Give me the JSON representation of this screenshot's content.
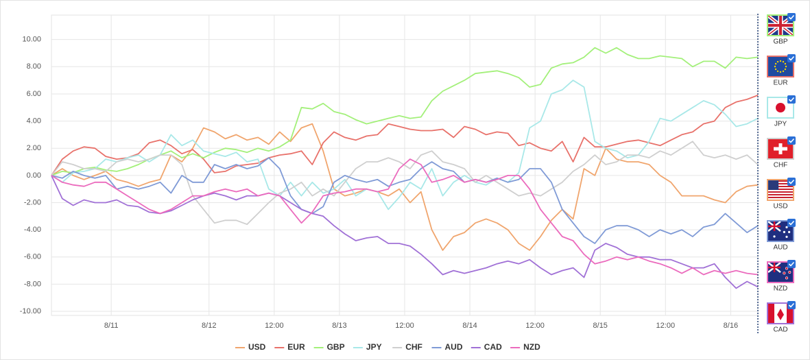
{
  "chart_data": {
    "type": "line",
    "x": [
      0,
      1,
      2,
      3,
      4,
      5,
      6,
      7,
      8,
      9,
      10,
      11,
      12,
      13,
      14,
      15,
      16,
      17,
      18,
      19,
      20,
      21,
      22,
      23,
      24,
      25,
      26,
      27,
      28,
      29,
      30,
      31,
      32,
      33,
      34,
      35,
      36,
      37,
      38,
      39,
      40,
      41,
      42,
      43,
      44,
      45,
      46,
      47,
      48,
      49,
      50,
      51,
      52,
      53,
      54,
      55,
      56,
      57,
      58,
      59,
      60,
      61,
      62,
      63,
      64,
      65
    ],
    "xlim": [
      0,
      65
    ],
    "xticks": [
      {
        "value": 5.5,
        "label": "8/11"
      },
      {
        "value": 14.5,
        "label": "8/12"
      },
      {
        "value": 20.5,
        "label": "12:00"
      },
      {
        "value": 26.5,
        "label": "8/13"
      },
      {
        "value": 32.5,
        "label": "12:00"
      },
      {
        "value": 38.5,
        "label": "8/14"
      },
      {
        "value": 44.5,
        "label": "12:00"
      },
      {
        "value": 50.5,
        "label": "8/15"
      },
      {
        "value": 56.5,
        "label": "12:00"
      },
      {
        "value": 62.5,
        "label": "8/16"
      }
    ],
    "ylim": [
      -10.3,
      11.8
    ],
    "yticks": [
      {
        "value": -10,
        "label": "-10.00"
      },
      {
        "value": -8,
        "label": "-8.00"
      },
      {
        "value": -6,
        "label": "-6.00"
      },
      {
        "value": -4,
        "label": "-4.00"
      },
      {
        "value": -2,
        "label": "-2.00"
      },
      {
        "value": 0,
        "label": "0.00"
      },
      {
        "value": 2,
        "label": "2.00"
      },
      {
        "value": 4,
        "label": "4.00"
      },
      {
        "value": 6,
        "label": "6.00"
      },
      {
        "value": 8,
        "label": "8.00"
      },
      {
        "value": 10,
        "label": "10.00"
      }
    ],
    "grid": true,
    "legend": "bottom",
    "series": [
      {
        "name": "USD",
        "color": "#f0a56d",
        "values": [
          0,
          0.5,
          0.0,
          -0.3,
          0.0,
          0.3,
          -0.3,
          -0.5,
          -0.8,
          -0.5,
          -0.3,
          1.5,
          1.0,
          2.0,
          3.5,
          3.2,
          2.7,
          3.0,
          2.6,
          2.8,
          2.3,
          3.2,
          2.5,
          3.5,
          3.8,
          1.8,
          -1.0,
          -1.5,
          -1.3,
          -1.0,
          -1.2,
          -1.5,
          -1.0,
          -2.0,
          -1.2,
          -4.0,
          -5.5,
          -4.5,
          -4.2,
          -3.5,
          -3.2,
          -3.5,
          -4.0,
          -5.0,
          -5.5,
          -4.5,
          -3.3,
          -2.5,
          -3.2,
          0.5,
          0.0,
          2.0,
          1.2,
          1.0,
          1.0,
          0.8,
          0.0,
          -0.5,
          -1.5,
          -1.5,
          -1.5,
          -1.8,
          -2.0,
          -1.2,
          -0.8,
          -0.7
        ]
      },
      {
        "name": "EUR",
        "color": "#e8716a",
        "values": [
          0,
          1.2,
          1.8,
          2.1,
          2.0,
          1.4,
          1.2,
          1.3,
          1.6,
          2.4,
          2.6,
          2.2,
          1.6,
          1.9,
          1.2,
          0.2,
          0.3,
          0.7,
          0.8,
          0.9,
          1.3,
          1.5,
          1.6,
          1.8,
          0.8,
          2.4,
          3.2,
          2.8,
          2.6,
          2.9,
          3.0,
          3.8,
          3.6,
          3.4,
          3.3,
          3.3,
          3.4,
          2.8,
          3.6,
          3.4,
          3.0,
          3.2,
          3.1,
          2.2,
          2.4,
          2.0,
          1.8,
          2.5,
          1.0,
          2.8,
          2.1,
          2.1,
          2.3,
          2.5,
          2.6,
          2.4,
          2.2,
          2.6,
          3.0,
          3.2,
          3.8,
          4.0,
          5.0,
          5.4,
          5.6,
          5.9
        ]
      },
      {
        "name": "GBP",
        "color": "#a3f07a",
        "values": [
          0,
          0.3,
          0.2,
          0.5,
          0.6,
          0.4,
          0.3,
          0.5,
          0.8,
          1.2,
          1.5,
          1.8,
          1.3,
          1.6,
          1.3,
          1.7,
          2.0,
          1.9,
          1.7,
          2.0,
          1.8,
          2.1,
          2.6,
          5.0,
          4.9,
          5.3,
          4.7,
          4.5,
          4.1,
          3.8,
          4.0,
          4.2,
          4.4,
          4.2,
          4.3,
          5.5,
          6.2,
          6.6,
          7.0,
          7.5,
          7.6,
          7.7,
          7.5,
          7.2,
          6.5,
          6.7,
          7.9,
          8.2,
          8.3,
          8.7,
          9.4,
          9.0,
          9.4,
          8.9,
          8.6,
          8.6,
          8.8,
          8.7,
          8.6,
          8.0,
          8.4,
          8.4,
          7.9,
          8.7,
          8.6,
          8.7
        ]
      },
      {
        "name": "JPY",
        "color": "#a8e8e8",
        "values": [
          0,
          -0.5,
          0.2,
          0.3,
          0.5,
          1.2,
          1.0,
          1.3,
          1.5,
          1.0,
          1.5,
          3.0,
          2.2,
          2.6,
          1.8,
          1.6,
          1.4,
          1.7,
          1.0,
          1.2,
          -1.0,
          -1.5,
          -0.5,
          -1.5,
          -0.5,
          -1.3,
          -1.0,
          -0.3,
          -1.5,
          -1.0,
          -1.2,
          -2.5,
          -1.6,
          -0.5,
          -1.0,
          0.5,
          -1.5,
          -0.5,
          0.0,
          -0.5,
          -0.7,
          -0.2,
          -0.5,
          0.2,
          3.5,
          4.0,
          6.0,
          6.3,
          7.0,
          6.5,
          2.5,
          2.0,
          1.8,
          1.3,
          1.5,
          2.5,
          4.2,
          4.0,
          4.5,
          5.0,
          5.5,
          5.2,
          4.5,
          3.6,
          3.8,
          4.2
        ]
      },
      {
        "name": "CHF",
        "color": "#cfcfcf",
        "values": [
          0,
          1.0,
          0.8,
          0.5,
          0.5,
          0.3,
          1.0,
          1.2,
          1.0,
          1.2,
          1.5,
          1.5,
          0.8,
          -1.5,
          -2.5,
          -3.5,
          -3.3,
          -3.3,
          -3.6,
          -2.8,
          -2.0,
          -1.3,
          -1.0,
          -0.5,
          -1.5,
          -1.0,
          -1.5,
          -0.5,
          0.5,
          1.0,
          1.0,
          1.3,
          1.0,
          0.5,
          1.5,
          1.8,
          1.0,
          0.8,
          0.5,
          -0.5,
          0.0,
          -0.5,
          -1.0,
          -1.5,
          -1.3,
          -1.5,
          -1.0,
          -0.5,
          0.3,
          0.8,
          1.5,
          0.8,
          1.0,
          1.5,
          1.5,
          1.3,
          1.8,
          1.5,
          2.0,
          2.5,
          1.5,
          1.3,
          1.5,
          1.2,
          1.5,
          0.8
        ]
      },
      {
        "name": "AUD",
        "color": "#7f9ad6",
        "values": [
          0,
          -0.2,
          0.3,
          0.0,
          -0.2,
          0.0,
          -1.0,
          -0.8,
          -1.0,
          -0.8,
          -0.5,
          -1.3,
          0.0,
          -0.5,
          -0.5,
          0.8,
          0.5,
          0.8,
          0.5,
          0.7,
          1.3,
          0.5,
          -1.5,
          -2.5,
          -2.8,
          -2.3,
          -0.5,
          0.0,
          -0.3,
          -0.5,
          -0.3,
          -0.8,
          -0.5,
          -0.3,
          0.5,
          1.0,
          0.5,
          0.3,
          -0.5,
          -0.3,
          -0.5,
          -0.2,
          -0.5,
          -0.3,
          0.5,
          0.5,
          -0.5,
          -2.5,
          -3.5,
          -4.5,
          -5.0,
          -4.0,
          -3.7,
          -3.7,
          -4.0,
          -4.5,
          -4.0,
          -4.3,
          -4.0,
          -4.5,
          -3.8,
          -3.6,
          -2.8,
          -3.5,
          -4.2,
          -3.7
        ]
      },
      {
        "name": "CAD",
        "color": "#a070d6",
        "values": [
          0,
          -1.7,
          -2.2,
          -1.8,
          -2.0,
          -2.0,
          -1.8,
          -2.2,
          -2.3,
          -2.7,
          -2.8,
          -2.6,
          -2.2,
          -1.8,
          -1.5,
          -1.3,
          -1.5,
          -1.8,
          -1.5,
          -1.5,
          -1.3,
          -1.5,
          -2.0,
          -2.5,
          -2.8,
          -3.0,
          -3.7,
          -4.3,
          -4.8,
          -4.6,
          -4.5,
          -5.0,
          -5.0,
          -5.2,
          -5.8,
          -6.5,
          -7.3,
          -7.0,
          -7.2,
          -7.0,
          -6.8,
          -6.5,
          -6.3,
          -6.5,
          -6.2,
          -6.8,
          -7.3,
          -7.0,
          -6.8,
          -7.5,
          -5.5,
          -5.0,
          -5.3,
          -5.8,
          -6.0,
          -6.0,
          -6.2,
          -6.2,
          -6.5,
          -6.8,
          -6.8,
          -6.5,
          -7.5,
          -8.3,
          -7.8,
          -8.2
        ]
      },
      {
        "name": "NZD",
        "color": "#eb6bbd",
        "values": [
          0,
          -0.5,
          -0.7,
          -0.8,
          -0.5,
          -0.5,
          -1.0,
          -1.5,
          -2.0,
          -2.5,
          -2.8,
          -2.5,
          -2.0,
          -1.5,
          -1.5,
          -1.2,
          -1.0,
          -1.2,
          -1.0,
          -1.5,
          -1.3,
          -1.5,
          -2.5,
          -3.5,
          -2.7,
          -1.5,
          -1.3,
          -1.2,
          -1.0,
          -1.0,
          -1.2,
          -1.0,
          0.5,
          1.2,
          0.8,
          -0.5,
          -0.3,
          0.0,
          -0.5,
          -0.3,
          -0.5,
          -0.3,
          0.0,
          0.0,
          -1.0,
          -2.5,
          -3.5,
          -4.5,
          -4.8,
          -5.8,
          -6.5,
          -6.3,
          -6.0,
          -6.2,
          -6.0,
          -6.3,
          -6.5,
          -6.8,
          -7.2,
          -6.8,
          -7.3,
          -7.0,
          -7.2,
          -7.0,
          -7.2,
          -7.3
        ]
      }
    ]
  },
  "currency_panel": [
    "GBP",
    "EUR",
    "JPY",
    "CHF",
    "USD",
    "AUD",
    "NZD",
    "CAD"
  ]
}
